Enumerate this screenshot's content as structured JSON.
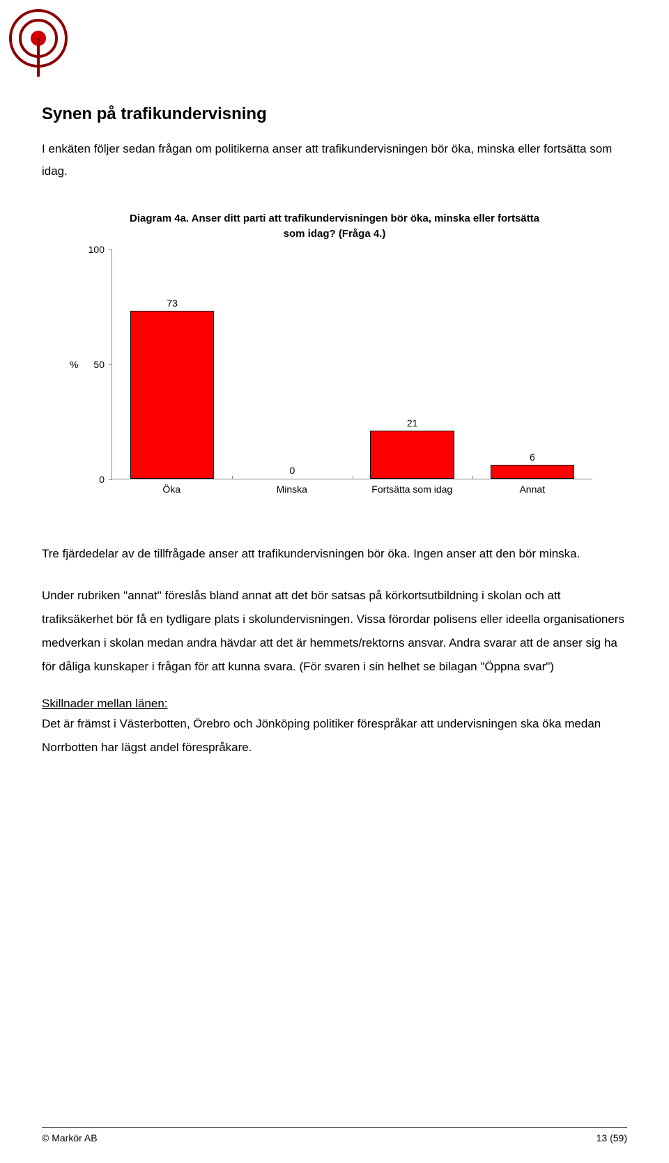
{
  "heading": "Synen på trafikundervisning",
  "intro": "I enkäten följer sedan frågan om politikerna anser att trafikundervisningen bör öka, minska eller fortsätta som idag.",
  "chart": {
    "type": "bar",
    "title_line1": "Diagram 4a. Anser ditt parti att trafikundervisningen bör öka, minska eller fortsätta",
    "title_line2": "som idag? (Fråga 4.)",
    "categories": [
      "Öka",
      "Minska",
      "Fortsätta som idag",
      "Annat"
    ],
    "values": [
      73,
      0,
      21,
      6
    ],
    "bar_color": "#ff0000",
    "bar_border": "#000000",
    "ylim": [
      0,
      100
    ],
    "yticks": [
      0,
      50,
      100
    ],
    "y_axis_label": "%",
    "bar_width_pct": 70,
    "background_color": "#ffffff",
    "axis_color": "#888888",
    "value_fontsize": 14,
    "label_fontsize": 14,
    "title_fontsize": 15
  },
  "para1": "Tre fjärdedelar av de tillfrågade anser att trafikundervisningen bör öka. Ingen anser att den bör minska.",
  "para2": "Under rubriken \"annat\" föreslås bland annat att det bör satsas på körkortsutbildning i skolan och att trafiksäkerhet bör få en tydligare plats i skolundervisningen. Vissa förordar polisens eller ideella organisationers medverkan i skolan medan andra hävdar att det är hemmets/rektorns ansvar. Andra svarar att de anser sig ha för dåliga kunskaper i frågan för att kunna svara. (För svaren i sin helhet se bilagan \"Öppna svar\")",
  "subhead": "Skillnader mellan länen:",
  "para3": "Det är främst i Västerbotten, Örebro och Jönköping politiker förespråkar att undervisningen ska öka medan Norrbotten har lägst andel förespråkare.",
  "footer_left": "© Markör AB",
  "footer_right": "13 (59)",
  "logo_colors": {
    "ring": "#8b0000",
    "dot": "#d00000",
    "stem": "#8b0000"
  }
}
